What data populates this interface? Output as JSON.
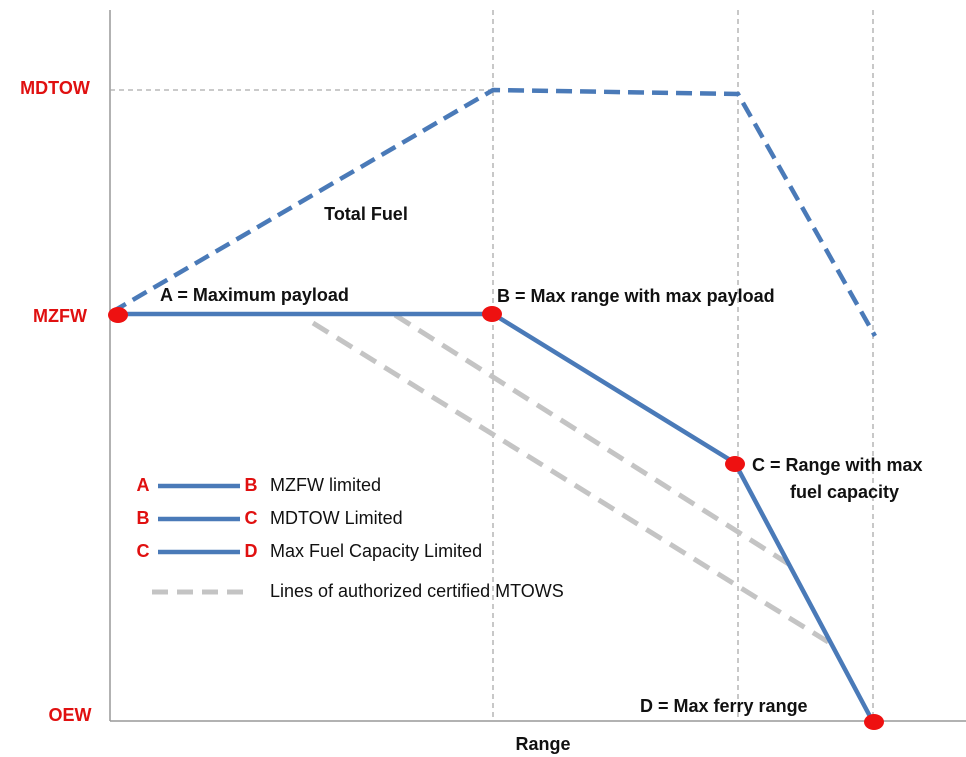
{
  "axes": {
    "y_labels": [
      "MDTOW",
      "MZFW",
      "OEW"
    ],
    "x_label": "Range"
  },
  "annotations": {
    "total_fuel": "Total Fuel",
    "a": "A = Maximum payload",
    "b": "B = Max range with max payload",
    "c": [
      "C = Range with max",
      "fuel capacity"
    ],
    "d": "D = Max ferry range"
  },
  "legend": {
    "items": [
      {
        "from": "A",
        "to": "B",
        "label": "MZFW limited"
      },
      {
        "from": "B",
        "to": "C",
        "label": "MDTOW Limited"
      },
      {
        "from": "C",
        "to": "D",
        "label": "Max Fuel Capacity Limited"
      }
    ],
    "dashed_label": "Lines of authorized certified MTOWS"
  }
}
